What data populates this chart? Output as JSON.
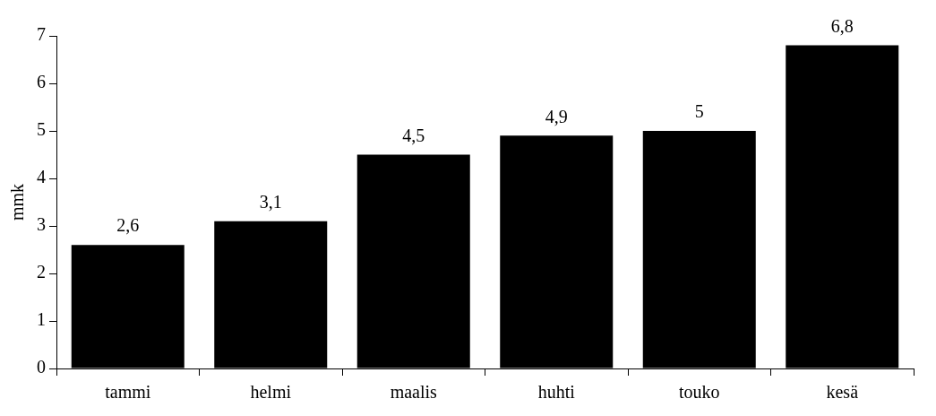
{
  "chart_data": {
    "type": "bar",
    "ylabel": "mmk",
    "categories": [
      "tammi",
      "helmi",
      "maalis",
      "huhti",
      "touko",
      "kesä"
    ],
    "values": [
      2.6,
      3.1,
      4.5,
      4.9,
      5,
      6.8
    ],
    "value_labels": [
      "2,6",
      "3,1",
      "4,5",
      "4,9",
      "5",
      "6,8"
    ],
    "color": "#000000",
    "ylim": [
      0,
      7
    ],
    "yticks": [
      0,
      1,
      2,
      3,
      4,
      5,
      6,
      7
    ],
    "grid": false,
    "legend": false
  }
}
